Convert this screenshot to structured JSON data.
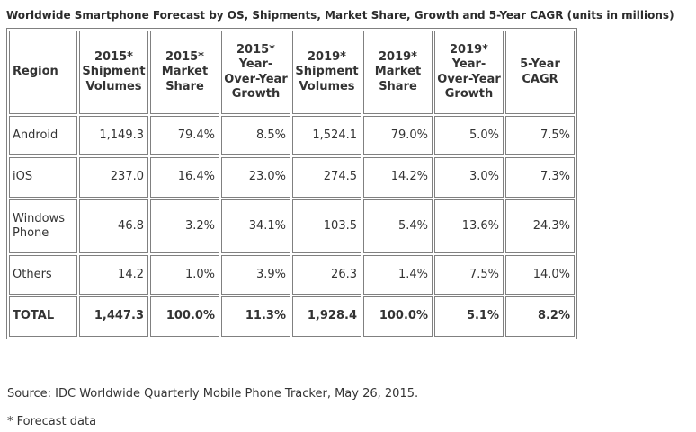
{
  "chart_data": {
    "type": "table",
    "title": "Worldwide Smartphone Forecast by OS, Shipments, Market Share, Growth and 5-Year CAGR (units in millions)",
    "columns": [
      "Region",
      "2015* Shipment Volumes",
      "2015* Market Share",
      "2015* Year-Over-Year Growth",
      "2019* Shipment Volumes",
      "2019* Market Share",
      "2019* Year-Over-Year Growth",
      "5-Year CAGR"
    ],
    "rows": [
      [
        "Android",
        "1,149.3",
        "79.4%",
        "8.5%",
        "1,524.1",
        "79.0%",
        "5.0%",
        "7.5%"
      ],
      [
        "iOS",
        "237.0",
        "16.4%",
        "23.0%",
        "274.5",
        "14.2%",
        "3.0%",
        "7.3%"
      ],
      [
        "Windows Phone",
        "46.8",
        "3.2%",
        "34.1%",
        "103.5",
        "5.4%",
        "13.6%",
        "24.3%"
      ],
      [
        "Others",
        "14.2",
        "1.0%",
        "3.9%",
        "26.3",
        "1.4%",
        "7.5%",
        "14.0%"
      ],
      [
        "TOTAL",
        "1,447.3",
        "100.0%",
        "11.3%",
        "1,928.4",
        "100.0%",
        "5.1%",
        "8.2%"
      ]
    ],
    "layout_hints": {
      "total_row_bold": true,
      "numbers_right_aligned": true,
      "header_centered": true
    }
  },
  "footer": {
    "source": "Source: IDC Worldwide Quarterly Mobile Phone Tracker, May 26, 2015.",
    "forecast_note": "* Forecast data"
  },
  "colors": {
    "text": "#333333",
    "border": "#808080",
    "background": "#ffffff"
  }
}
